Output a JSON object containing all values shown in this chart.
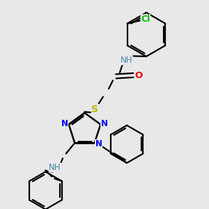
{
  "bg": "#e8e8e8",
  "bond_color": "#000000",
  "bond_lw": 1.6,
  "atom_colors": {
    "N": "#0000ee",
    "O": "#ee0000",
    "S": "#bbbb00",
    "Cl": "#00bb00",
    "H_label": "#4488aa"
  },
  "font_size_atom": 8.5,
  "font_size_small": 7.5
}
